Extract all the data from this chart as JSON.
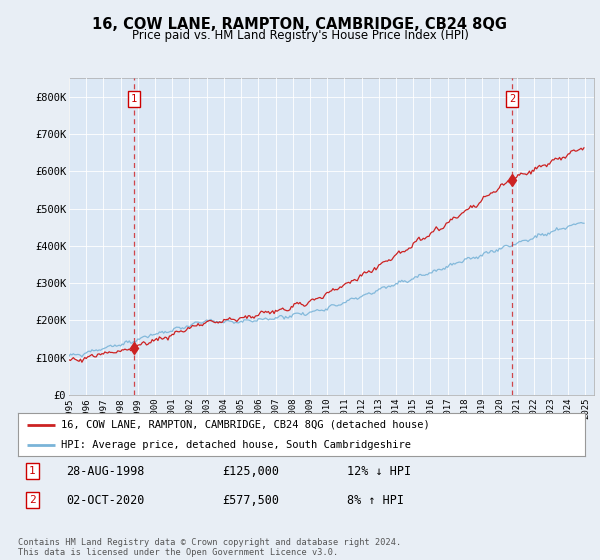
{
  "title": "16, COW LANE, RAMPTON, CAMBRIDGE, CB24 8QG",
  "subtitle": "Price paid vs. HM Land Registry's House Price Index (HPI)",
  "bg_color": "#e8eef5",
  "plot_bg_color": "#dce8f5",
  "hpi_color": "#7ab4d8",
  "price_color": "#cc2222",
  "ylim": [
    0,
    850000
  ],
  "yticks": [
    0,
    100000,
    200000,
    300000,
    400000,
    500000,
    600000,
    700000,
    800000
  ],
  "ytick_labels": [
    "£0",
    "£100K",
    "£200K",
    "£300K",
    "£400K",
    "£500K",
    "£600K",
    "£700K",
    "£800K"
  ],
  "sale1_year_idx": 45,
  "sale1_price": 125000,
  "sale1_label": "1",
  "sale2_year_idx": 309,
  "sale2_price": 577500,
  "sale2_label": "2",
  "legend_line1": "16, COW LANE, RAMPTON, CAMBRIDGE, CB24 8QG (detached house)",
  "legend_line2": "HPI: Average price, detached house, South Cambridgeshire",
  "table_row1": [
    "1",
    "28-AUG-1998",
    "£125,000",
    "12% ↓ HPI"
  ],
  "table_row2": [
    "2",
    "02-OCT-2020",
    "£577,500",
    "8% ↑ HPI"
  ],
  "footer": "Contains HM Land Registry data © Crown copyright and database right 2024.\nThis data is licensed under the Open Government Licence v3.0."
}
